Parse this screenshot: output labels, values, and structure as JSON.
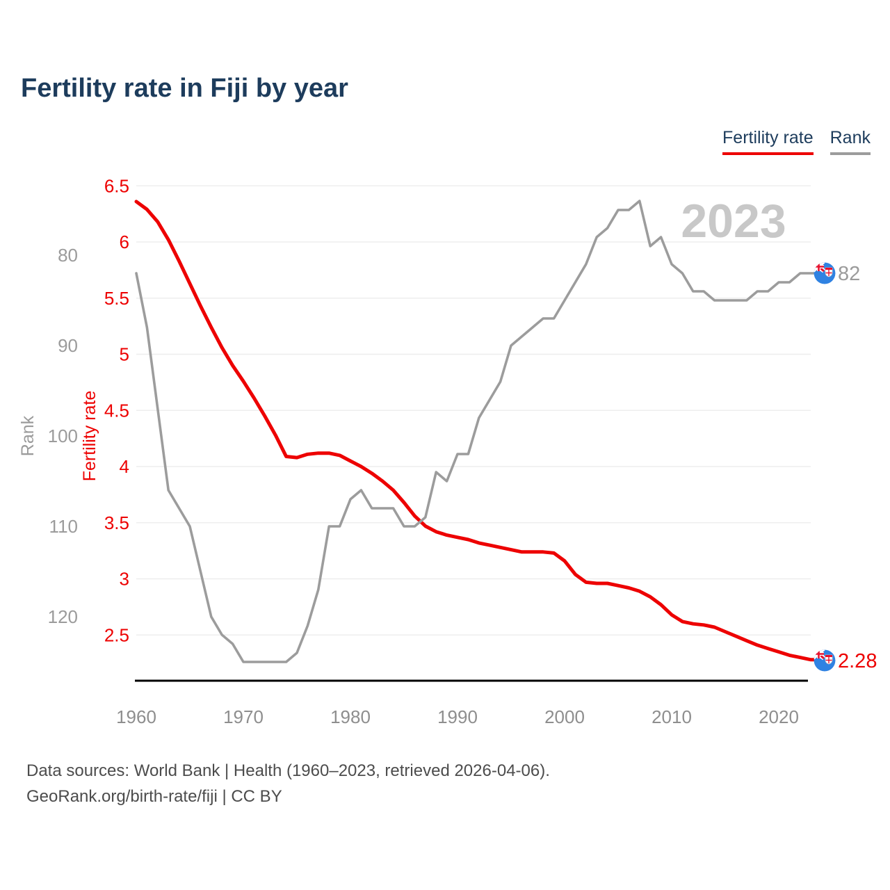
{
  "header": {
    "title": "Fertility rate in Fiji by year"
  },
  "legend": [
    {
      "label": "Fertility rate",
      "color": "#ed0000"
    },
    {
      "label": "Rank",
      "color": "#9c9c9c"
    }
  ],
  "watermark": {
    "text": "2023",
    "color": "#c8c8c8"
  },
  "axes": {
    "fertility": {
      "label": "Fertility rate",
      "color": "#ed0000",
      "ticks": [
        6.5,
        6,
        5.5,
        5,
        4.5,
        4,
        3.5,
        3,
        2.5
      ]
    },
    "rank": {
      "label": "Rank",
      "color": "#9b9b9b",
      "ticks": [
        80,
        90,
        100,
        110,
        120
      ]
    },
    "x": {
      "ticks": [
        1960,
        1970,
        1980,
        1990,
        2000,
        2010,
        2020
      ],
      "color": "#8e8e8e"
    }
  },
  "end_labels": {
    "rank": "82",
    "fertility": "2.28"
  },
  "footer": {
    "line1": "Data sources: World Bank | Health (1960–2023, retrieved 2026-04-06).",
    "line2": "GeoRank.org/birth-rate/fiji | CC BY"
  },
  "chart_data": {
    "type": "line",
    "title": "Fertility rate in Fiji by year",
    "x_range": [
      1960,
      2023
    ],
    "grid": "horizontal-only",
    "legend_position": "top-right",
    "x": [
      1960,
      1961,
      1962,
      1963,
      1964,
      1965,
      1966,
      1967,
      1968,
      1969,
      1970,
      1971,
      1972,
      1973,
      1974,
      1975,
      1976,
      1977,
      1978,
      1979,
      1980,
      1981,
      1982,
      1983,
      1984,
      1985,
      1986,
      1987,
      1988,
      1989,
      1990,
      1991,
      1992,
      1993,
      1994,
      1995,
      1996,
      1997,
      1998,
      1999,
      2000,
      2001,
      2002,
      2003,
      2004,
      2005,
      2006,
      2007,
      2008,
      2009,
      2010,
      2011,
      2012,
      2013,
      2014,
      2015,
      2016,
      2017,
      2018,
      2019,
      2020,
      2021,
      2022,
      2023
    ],
    "series": [
      {
        "name": "Fertility rate",
        "axis": "fertility",
        "color": "#ed0000",
        "axis_range": [
          2.5,
          6.5
        ],
        "axis_inverted": false,
        "last_value_label": "2.28",
        "values": [
          6.36,
          6.29,
          6.18,
          6.02,
          5.83,
          5.63,
          5.43,
          5.24,
          5.06,
          4.9,
          4.76,
          4.61,
          4.45,
          4.28,
          4.09,
          4.08,
          4.11,
          4.12,
          4.12,
          4.1,
          4.05,
          4.0,
          3.94,
          3.87,
          3.79,
          3.68,
          3.56,
          3.47,
          3.42,
          3.39,
          3.37,
          3.35,
          3.32,
          3.3,
          3.28,
          3.26,
          3.24,
          3.24,
          3.24,
          3.23,
          3.16,
          3.04,
          2.97,
          2.96,
          2.96,
          2.94,
          2.92,
          2.89,
          2.84,
          2.77,
          2.68,
          2.62,
          2.6,
          2.59,
          2.57,
          2.53,
          2.49,
          2.45,
          2.41,
          2.38,
          2.35,
          2.32,
          2.3,
          2.28
        ]
      },
      {
        "name": "Rank",
        "axis": "rank",
        "color": "#9c9c9c",
        "axis_range": [
          80,
          125
        ],
        "axis_inverted": true,
        "last_value_label": "82",
        "values": [
          82,
          88,
          97,
          106,
          108,
          110,
          115,
          120,
          122,
          123,
          125,
          125,
          125,
          125,
          125,
          124,
          121,
          117,
          110,
          110,
          107,
          106,
          108,
          108,
          108,
          110,
          110,
          109,
          104,
          105,
          102,
          102,
          98,
          96,
          94,
          90,
          89,
          88,
          87,
          87,
          85,
          83,
          81,
          78,
          77,
          75,
          75,
          74,
          79,
          78,
          81,
          82,
          84,
          84,
          85,
          85,
          85,
          85,
          84,
          84,
          83,
          83,
          82,
          82
        ]
      }
    ]
  }
}
